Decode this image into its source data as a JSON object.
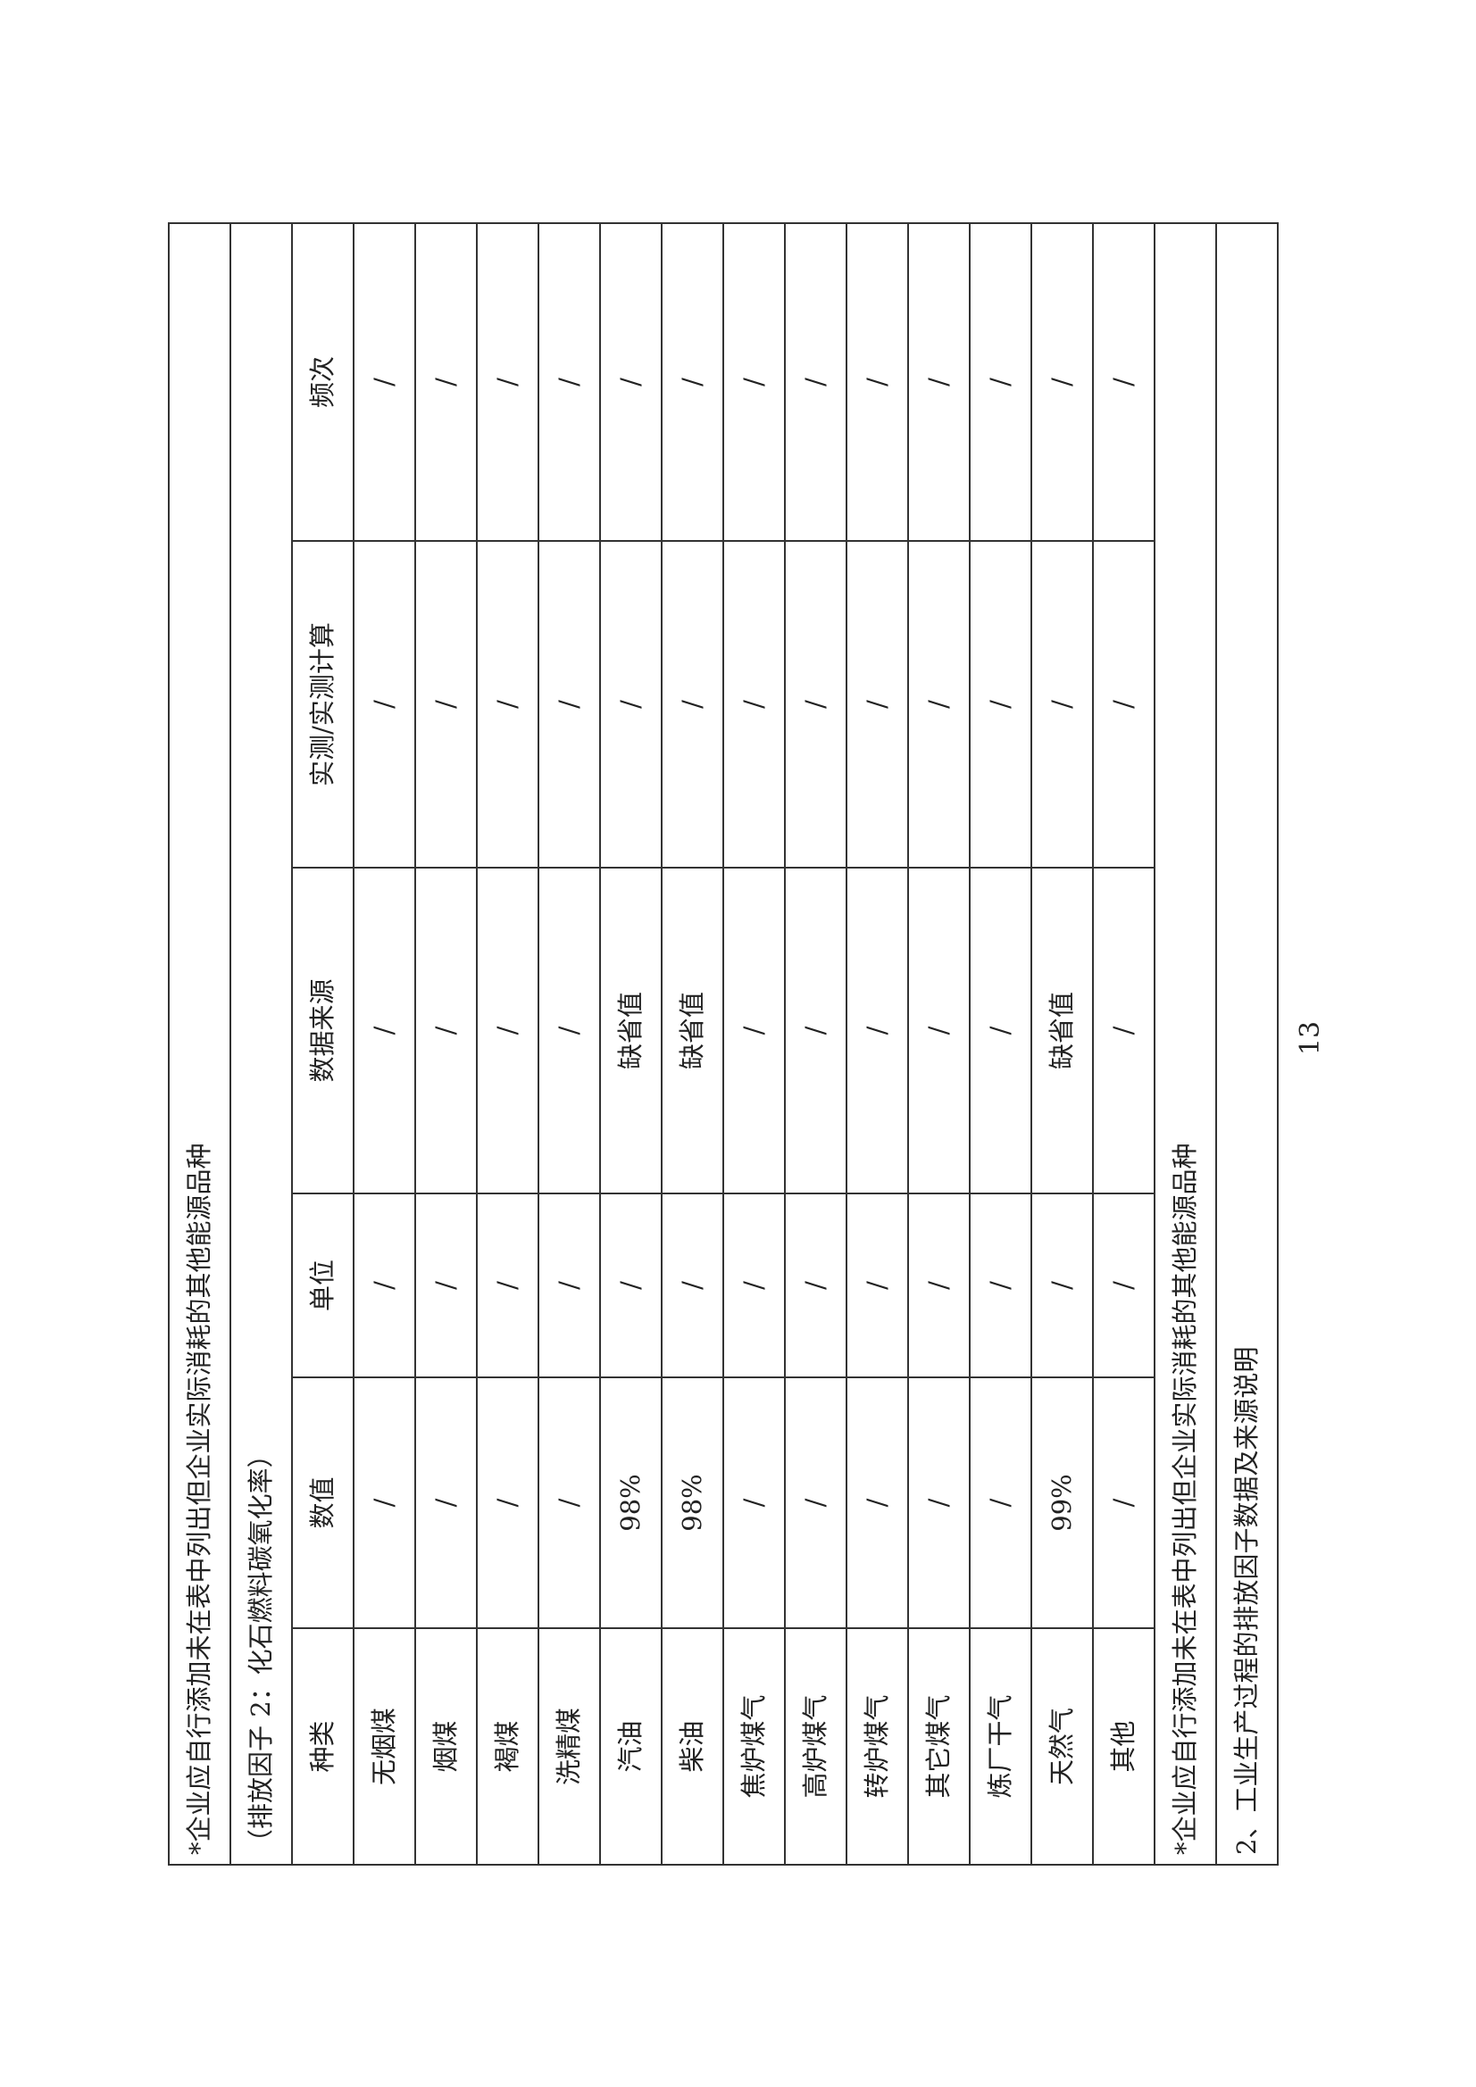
{
  "note_top": "*企业应自行添加未在表中列出但企业实际消耗的其他能源品种",
  "table_title": "（排放因子 2：化石燃料碳氧化率）",
  "headers": [
    "种类",
    "数值",
    "单位",
    "数据来源",
    "实测/实测计算",
    "频次"
  ],
  "rows": [
    [
      "无烟煤",
      "/",
      "/",
      "/",
      "/",
      "/"
    ],
    [
      "烟煤",
      "/",
      "/",
      "/",
      "/",
      "/"
    ],
    [
      "褐煤",
      "/",
      "/",
      "/",
      "/",
      "/"
    ],
    [
      "洗精煤",
      "/",
      "/",
      "/",
      "/",
      "/"
    ],
    [
      "汽油",
      "98%",
      "/",
      "缺省值",
      "/",
      "/"
    ],
    [
      "柴油",
      "98%",
      "/",
      "缺省值",
      "/",
      "/"
    ],
    [
      "焦炉煤气",
      "/",
      "/",
      "/",
      "/",
      "/"
    ],
    [
      "高炉煤气",
      "/",
      "/",
      "/",
      "/",
      "/"
    ],
    [
      "转炉煤气",
      "/",
      "/",
      "/",
      "/",
      "/"
    ],
    [
      "其它煤气",
      "/",
      "/",
      "/",
      "/",
      "/"
    ],
    [
      "炼厂干气",
      "/",
      "/",
      "/",
      "/",
      "/"
    ],
    [
      "天然气",
      "99%",
      "/",
      "缺省值",
      "/",
      "/"
    ],
    [
      "其他",
      "/",
      "/",
      "/",
      "/",
      "/"
    ]
  ],
  "note_bottom": "*企业应自行添加未在表中列出但企业实际消耗的其他能源品种",
  "section_heading": "2、工业生产过程的排放因子数据及来源说明",
  "page_number": "13"
}
